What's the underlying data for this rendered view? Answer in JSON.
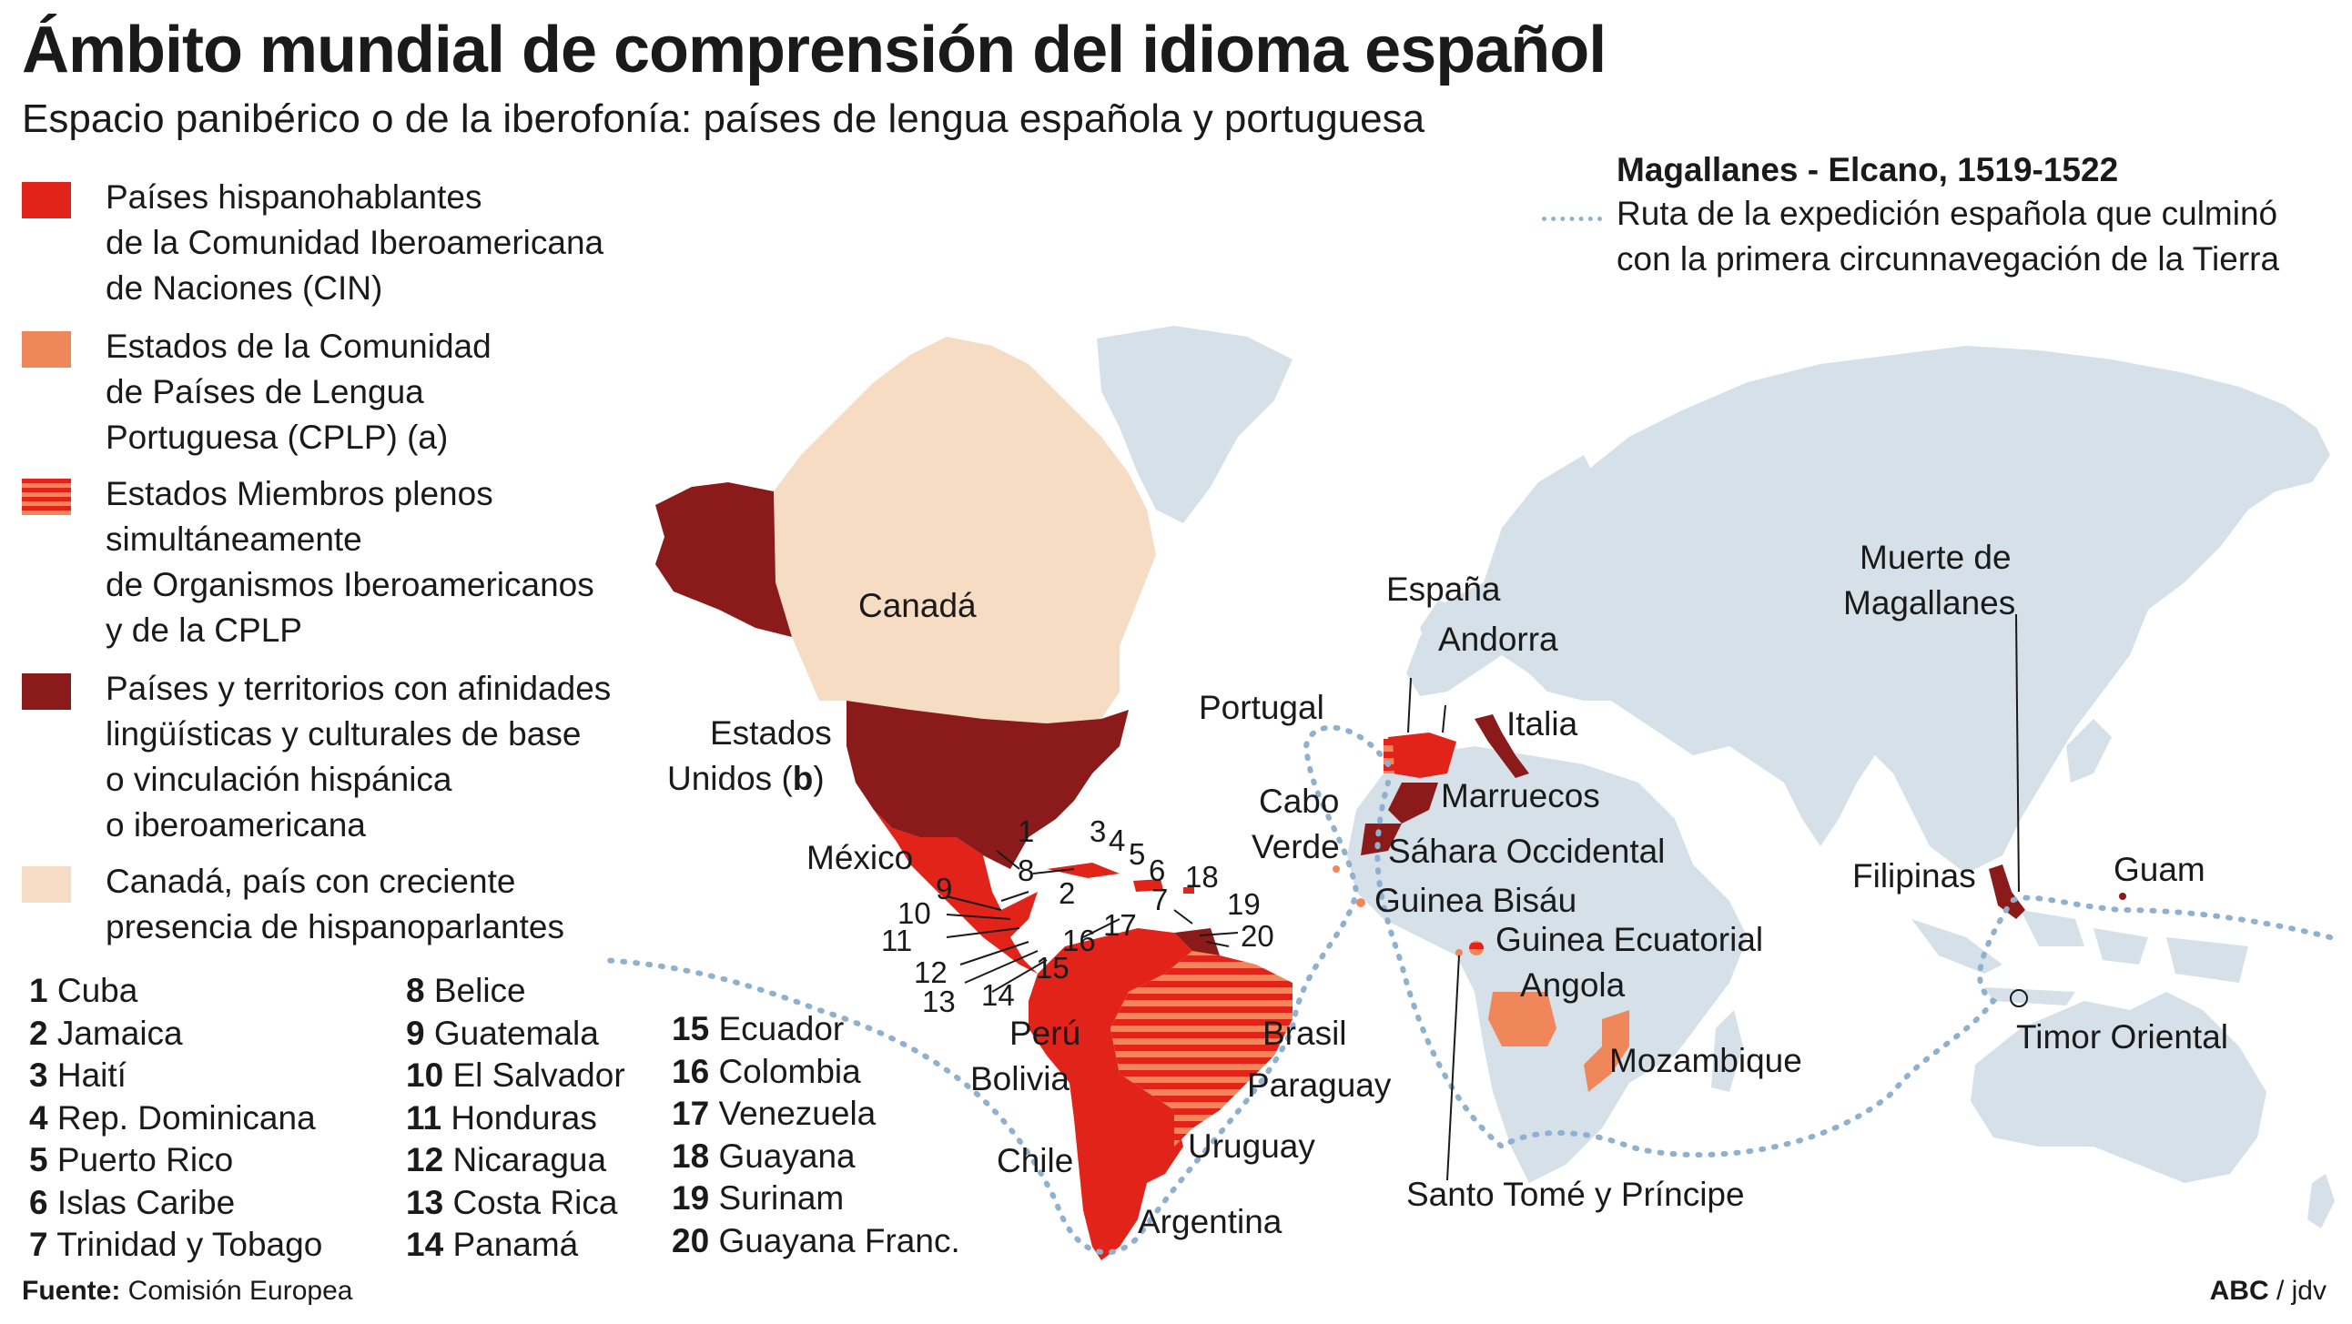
{
  "title": "Ámbito mundial de comprensión del idioma español",
  "subtitle": "Espacio panibérico o de la iberofonía: países de lengua española y portuguesa",
  "legend": {
    "items": [
      {
        "label": "Países hispanohablantes\nde la Comunidad Iberoamericana\nde Naciones (CIN)",
        "color": "#e2231a"
      },
      {
        "label": "Estados de la Comunidad\nde Países de Lengua\nPortuguesa (CPLP) (a)",
        "color": "#f0875a"
      },
      {
        "label": "Estados Miembros plenos\nsimultáneamente\nde Organismos Iberoamericanos\ny de la CPLP",
        "color": "stripes #e2231a / #f0875a"
      },
      {
        "label": "Países y territorios con afinidades\nlingüísticas y culturales de base\no vinculación hispánica\no iberoamericana",
        "color": "#8b1a1a"
      },
      {
        "label": "Canadá, país con creciente\npresencia de hispanoparlantes",
        "color": "#f7dcc4"
      }
    ]
  },
  "route": {
    "title": "Magallanes - Elcano, 1519-1522",
    "description": "Ruta de la expedición española que culminó\ncon la primera circunnavegación de la Tierra",
    "color": "#8fb1cf"
  },
  "numbered": [
    {
      "n": "1",
      "name": "Cuba"
    },
    {
      "n": "2",
      "name": "Jamaica"
    },
    {
      "n": "3",
      "name": "Haití"
    },
    {
      "n": "4",
      "name": "Rep. Dominicana"
    },
    {
      "n": "5",
      "name": "Puerto Rico"
    },
    {
      "n": "6",
      "name": "Islas Caribe"
    },
    {
      "n": "7",
      "name": "Trinidad y Tobago"
    },
    {
      "n": "8",
      "name": "Belice"
    },
    {
      "n": "9",
      "name": "Guatemala"
    },
    {
      "n": "10",
      "name": "El Salvador"
    },
    {
      "n": "11",
      "name": "Honduras"
    },
    {
      "n": "12",
      "name": "Nicaragua"
    },
    {
      "n": "13",
      "name": "Costa Rica"
    },
    {
      "n": "14",
      "name": "Panamá"
    },
    {
      "n": "15",
      "name": "Ecuador"
    },
    {
      "n": "16",
      "name": "Colombia"
    },
    {
      "n": "17",
      "name": "Venezuela"
    },
    {
      "n": "18",
      "name": "Guayana"
    },
    {
      "n": "19",
      "name": "Surinam"
    },
    {
      "n": "20",
      "name": "Guayana Franc."
    }
  ],
  "map_labels": {
    "canada": "Canadá",
    "eeuu_1": "Estados",
    "eeuu_2": "Unidos (",
    "eeuu_b": "b",
    "eeuu_3": ")",
    "mexico": "México",
    "peru": "Perú",
    "bolivia": "Bolivia",
    "chile": "Chile",
    "argentina": "Argentina",
    "brasil": "Brasil",
    "paraguay": "Paraguay",
    "uruguay": "Uruguay",
    "portugal": "Portugal",
    "espana": "España",
    "andorra": "Andorra",
    "italia": "Italia",
    "marruecos": "Marruecos",
    "sahara": "Sáhara Occidental",
    "cabo_verde_1": "Cabo",
    "cabo_verde_2": "Verde",
    "guinea_bisau": "Guinea Bisáu",
    "guinea_ecuatorial": "Guinea Ecuatorial",
    "angola": "Angola",
    "mozambique": "Mozambique",
    "santo_tome": "Santo Tomé y Príncipe",
    "muerte_1": "Muerte de",
    "muerte_2": "Magallanes",
    "filipinas": "Filipinas",
    "guam": "Guam",
    "timor": "Timor Oriental"
  },
  "map_numbers": [
    "1",
    "2",
    "3",
    "4",
    "5",
    "6",
    "7",
    "8",
    "9",
    "10",
    "11",
    "12",
    "13",
    "14",
    "15",
    "16",
    "17",
    "18",
    "19",
    "20"
  ],
  "colors": {
    "land": "#d5e0e8",
    "cin": "#e2231a",
    "cplp": "#f0875a",
    "afinidad": "#8b1a1a",
    "canada": "#f7dcc4",
    "route": "#8fb1cf"
  },
  "source": {
    "label": "Fuente:",
    "text": "Comisión Europea"
  },
  "credit": {
    "brand": "ABC",
    "author": " / jdv"
  }
}
